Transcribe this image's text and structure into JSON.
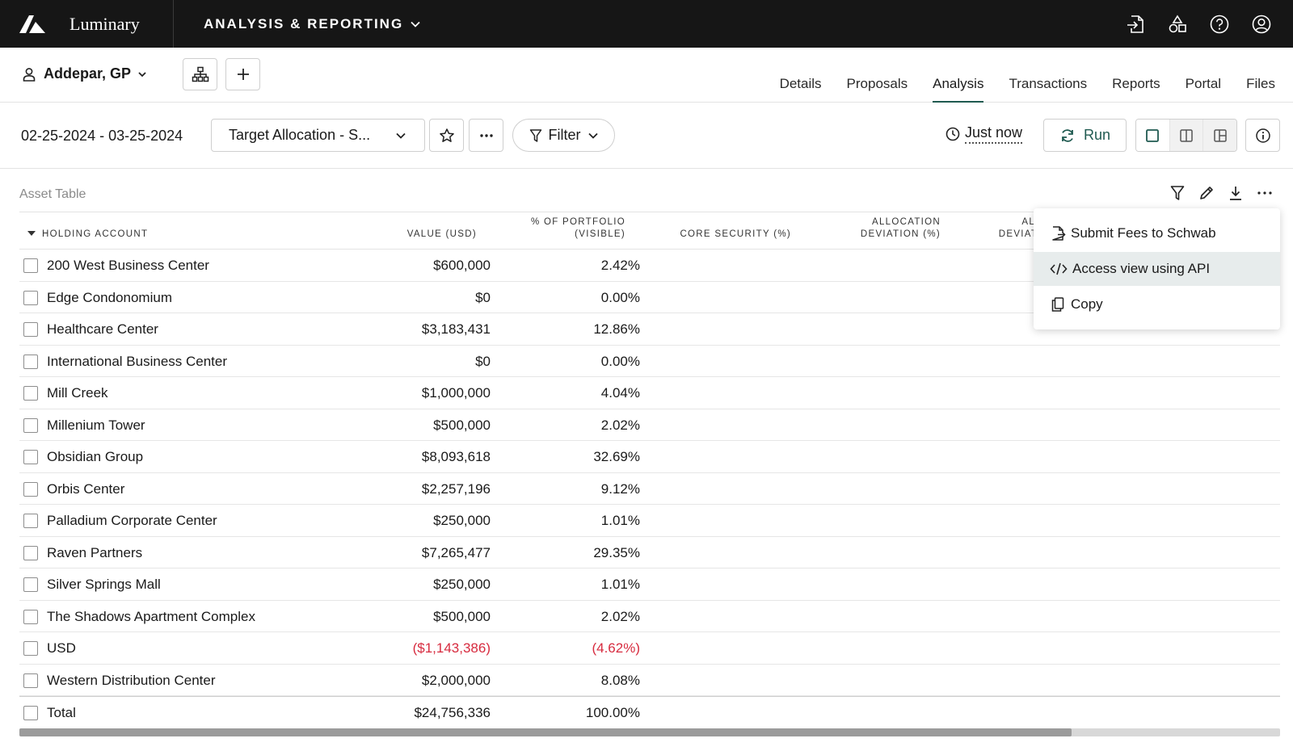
{
  "topbar": {
    "brand_name": "Luminary",
    "app_menu_label": "ANALYSIS & REPORTING",
    "icons": [
      "login-icon",
      "shapes-icon",
      "help-icon",
      "user-account-icon"
    ]
  },
  "header": {
    "client_name": "Addepar, GP",
    "tabs": [
      {
        "label": "Details"
      },
      {
        "label": "Proposals"
      },
      {
        "label": "Analysis"
      },
      {
        "label": "Transactions"
      },
      {
        "label": "Reports"
      },
      {
        "label": "Portal"
      },
      {
        "label": "Files"
      }
    ],
    "active_tab": "Analysis"
  },
  "toolbar": {
    "date_range": "02-25-2024 - 03-25-2024",
    "view_name": "Target Allocation - S...",
    "filter_label": "Filter",
    "last_run": "Just now",
    "run_label": "Run"
  },
  "table": {
    "title": "Asset Table",
    "columns": {
      "holding_account": "HOLDING ACCOUNT",
      "value": "VALUE (USD)",
      "pct_line1": "% OF PORTFOLIO",
      "pct_line2": "(VISIBLE)",
      "core_security": "CORE SECURITY (%)",
      "alloc_dev_line1": "ALLOCATION",
      "alloc_dev_line2": "DEVIATION (%)",
      "alloc_dev2_line1": "ALLO",
      "alloc_dev2_line2": "DEVIATIO"
    },
    "rows": [
      {
        "name": "200 West Business Center",
        "value": "$600,000",
        "pct": "2.42%"
      },
      {
        "name": "Edge Condonomium",
        "value": "$0",
        "pct": "0.00%"
      },
      {
        "name": "Healthcare Center",
        "value": "$3,183,431",
        "pct": "12.86%"
      },
      {
        "name": "International Business Center",
        "value": "$0",
        "pct": "0.00%"
      },
      {
        "name": "Mill Creek",
        "value": "$1,000,000",
        "pct": "4.04%"
      },
      {
        "name": "Millenium Tower",
        "value": "$500,000",
        "pct": "2.02%"
      },
      {
        "name": "Obsidian Group",
        "value": "$8,093,618",
        "pct": "32.69%"
      },
      {
        "name": "Orbis Center",
        "value": "$2,257,196",
        "pct": "9.12%"
      },
      {
        "name": "Palladium Corporate Center",
        "value": "$250,000",
        "pct": "1.01%"
      },
      {
        "name": "Raven Partners",
        "value": "$7,265,477",
        "pct": "29.35%"
      },
      {
        "name": "Silver Springs Mall",
        "value": "$250,000",
        "pct": "1.01%"
      },
      {
        "name": "The Shadows Apartment Complex",
        "value": "$500,000",
        "pct": "2.02%"
      },
      {
        "name": "USD",
        "value": "($1,143,386)",
        "pct": "(4.62%)"
      },
      {
        "name": "Western Distribution Center",
        "value": "$2,000,000",
        "pct": "8.08%"
      }
    ],
    "total": {
      "name": "Total",
      "value": "$24,756,336",
      "pct": "100.00%"
    },
    "negative_color": "#d72b3f"
  },
  "menu": {
    "items": [
      {
        "label": "Submit Fees to Schwab",
        "icon": "export-file-icon"
      },
      {
        "label": "Access view using API",
        "icon": "code-icon"
      },
      {
        "label": "Copy",
        "icon": "copy-icon"
      }
    ]
  },
  "colors": {
    "topbar_bg": "#161616",
    "accent": "#1f5a50"
  }
}
